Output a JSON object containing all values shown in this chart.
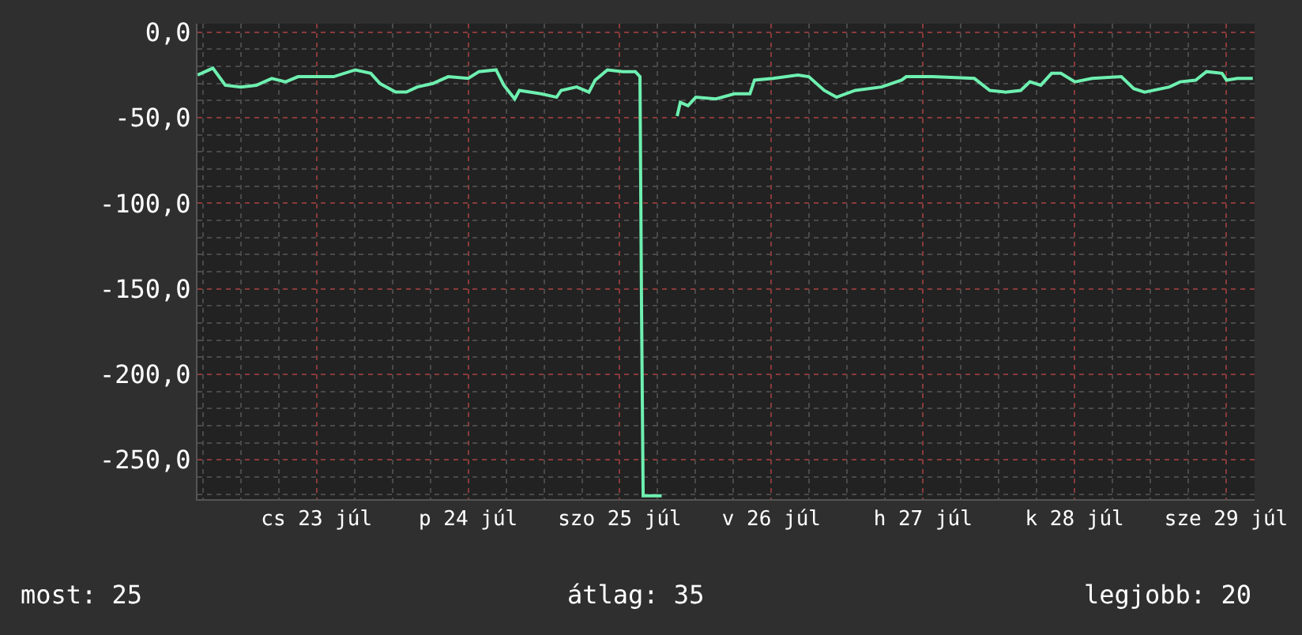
{
  "chart_data": {
    "type": "line",
    "x": [
      "--07-22T17:10",
      "--07-22T19:35",
      "--07-22T21:33",
      "--07-23T00:00",
      "--07-23T02:27",
      "--07-23T04:54",
      "--07-23T07:06",
      "--07-23T09:04",
      "--07-23T11:30",
      "--07-23T14:42",
      "--07-23T18:08",
      "--07-23T20:35",
      "--07-23T22:03",
      "--07-24T00:30",
      "--07-24T02:13",
      "--07-24T03:56",
      "--07-24T06:23",
      "--07-24T08:50",
      "--07-24T12:00",
      "--07-24T13:43",
      "--07-24T16:25",
      "--07-24T17:39",
      "--07-24T19:22",
      "--07-24T20:06",
      "--07-24T23:32",
      "--07-25T02:00",
      "--07-25T02:43",
      "--07-25T05:10",
      "--07-25T07:07",
      "--07-25T08:06",
      "--07-25T10:03",
      "--07-25T12:30",
      "--07-25T14:28",
      "--07-25T15:12",
      "--07-25T15:27",
      "--07-25T15:42",
      "--07-25T18:38",
      "--07-25T20:00",
      "--07-25T21:05",
      "--07-25T21:35",
      "--07-25T22:48",
      "--07-26T00:02",
      "--07-26T03:13",
      "--07-26T06:09",
      "--07-26T08:36",
      "--07-26T09:20",
      "--07-26T12:16",
      "--07-26T16:12",
      "--07-26T17:55",
      "--07-26T20:22",
      "--07-26T22:19",
      "--07-27T01:16",
      "--07-27T05:26",
      "--07-27T08:37",
      "--07-27T09:21",
      "--07-27T13:31",
      "--07-27T20:08",
      "--07-27T22:35",
      "--07-28T01:01",
      "--07-28T03:28",
      "--07-28T04:56",
      "--07-28T06:39",
      "--07-28T08:22",
      "--07-28T09:50",
      "--07-28T12:03",
      "--07-28T14:45",
      "--07-28T19:24",
      "--07-28T21:22",
      "--07-28T23:05",
      "--07-29T03:00",
      "--07-29T04:43",
      "--07-29T07:10",
      "--07-29T08:53",
      "--07-29T11:20",
      "--07-29T12:04",
      "--07-29T13:47",
      "--07-29T16:13"
    ],
    "values": [
      -25,
      -21,
      -31,
      -32,
      -31,
      -27,
      -29,
      -26,
      -26,
      -26,
      -22,
      -24,
      -30,
      -35,
      -35,
      -32,
      -30,
      -26,
      -27,
      -23,
      -22,
      -31,
      -39,
      -34,
      -36,
      -38,
      -34,
      -32,
      -35,
      -28,
      -22,
      -23,
      -23,
      -26,
      -164,
      -271,
      -271,
      null,
      -49,
      -41,
      -43,
      -38,
      -39,
      -36,
      -36,
      -28,
      -27,
      -25,
      -26,
      -34,
      -38,
      -34,
      -32,
      -28,
      -26,
      -26,
      -27,
      -34,
      -35,
      -34,
      -29,
      -31,
      -24,
      -24,
      -29,
      -27,
      -26,
      -33,
      -35,
      -32,
      -29,
      -28,
      -23,
      -24,
      -28,
      -27,
      -27
    ],
    "color": "#6ef0b0",
    "xlim": [
      "--07-22T17:09",
      "--07-29T16:30"
    ],
    "xticks": [
      {
        "value": "--07-23T12:00",
        "label": "cs 23 júl"
      },
      {
        "value": "--07-24T12:00",
        "label": "p 24 júl"
      },
      {
        "value": "--07-25T12:00",
        "label": "szo 25 júl"
      },
      {
        "value": "--07-26T12:00",
        "label": "v 26 júl"
      },
      {
        "value": "--07-27T12:00",
        "label": "h 27 júl"
      },
      {
        "value": "--07-28T12:00",
        "label": "k 28 júl"
      },
      {
        "value": "--07-29T12:00",
        "label": "sze 29 júl"
      }
    ],
    "ylim": [
      -273,
      5
    ],
    "yticks": [
      {
        "value": 0,
        "label": "0,0"
      },
      {
        "value": -50,
        "label": "-50,0"
      },
      {
        "value": -100,
        "label": "-100,0"
      },
      {
        "value": -150,
        "label": "-150,0"
      },
      {
        "value": -200,
        "label": "-200,0"
      },
      {
        "value": -250,
        "label": "-250,0"
      }
    ],
    "grid": true,
    "legend": false,
    "annotations": [
      "most: 25",
      "átlag: 35",
      "legjobb: 20"
    ]
  }
}
